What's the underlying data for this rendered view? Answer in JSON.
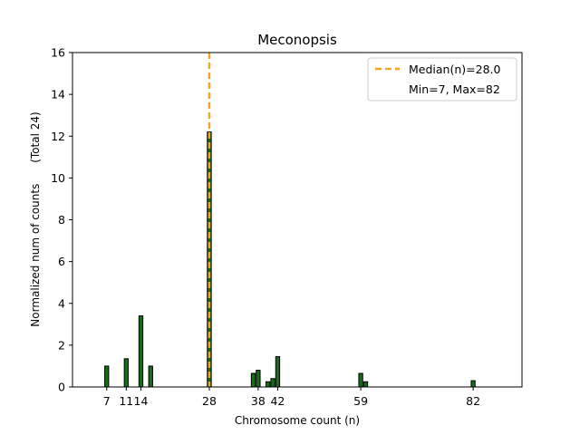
{
  "chart_data": {
    "type": "bar",
    "title": "Meconopsis",
    "xlabel": "Chromosome count (n)",
    "ylabel": "Normalized num of counts      (Total 24)",
    "xlim": [
      0,
      92
    ],
    "ylim": [
      0,
      16
    ],
    "yticks": [
      0,
      2,
      4,
      6,
      8,
      10,
      12,
      14,
      16
    ],
    "xticks": [
      7,
      11,
      14,
      28,
      38,
      42,
      59,
      82
    ],
    "xtick_labels": [
      "7",
      "11",
      "14",
      "28",
      "38",
      "42",
      "59",
      "82"
    ],
    "bar_width": 0.8,
    "bar_color": "#1a6b1a",
    "bar_edge_color": "#000000",
    "bars": [
      {
        "x": 7,
        "y": 1.0
      },
      {
        "x": 11,
        "y": 1.35
      },
      {
        "x": 14,
        "y": 3.4
      },
      {
        "x": 16,
        "y": 1.0
      },
      {
        "x": 28,
        "y": 12.2
      },
      {
        "x": 37,
        "y": 0.65
      },
      {
        "x": 38,
        "y": 0.8
      },
      {
        "x": 40,
        "y": 0.25
      },
      {
        "x": 41,
        "y": 0.4
      },
      {
        "x": 42,
        "y": 1.45
      },
      {
        "x": 59,
        "y": 0.65
      },
      {
        "x": 60,
        "y": 0.25
      },
      {
        "x": 82,
        "y": 0.3
      }
    ],
    "median_line": {
      "x": 28.0,
      "color": "#f5a623"
    },
    "legend": {
      "position": "top-right",
      "entries": [
        "Median(n)=28.0",
        "Min=7, Max=82"
      ]
    }
  }
}
